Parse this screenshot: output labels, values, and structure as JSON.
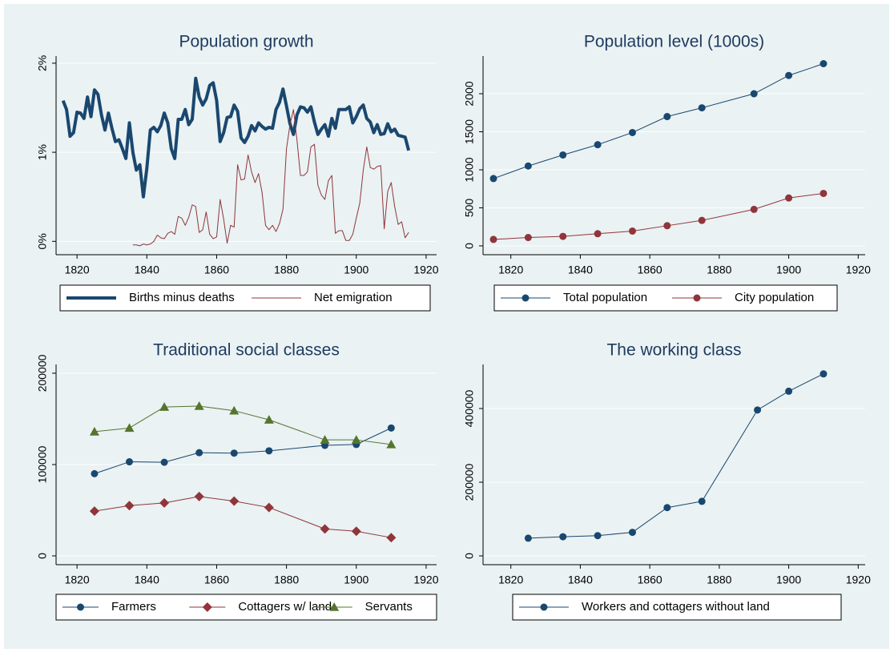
{
  "chart_data": [
    {
      "type": "line",
      "title": "Population growth",
      "x": [
        1816,
        1817,
        1818,
        1819,
        1820,
        1821,
        1822,
        1823,
        1824,
        1825,
        1826,
        1827,
        1828,
        1829,
        1830,
        1831,
        1832,
        1833,
        1834,
        1835,
        1836,
        1837,
        1838,
        1839,
        1840,
        1841,
        1842,
        1843,
        1844,
        1845,
        1846,
        1847,
        1848,
        1849,
        1850,
        1851,
        1852,
        1853,
        1854,
        1855,
        1856,
        1857,
        1858,
        1859,
        1860,
        1861,
        1862,
        1863,
        1864,
        1865,
        1866,
        1867,
        1868,
        1869,
        1870,
        1871,
        1872,
        1873,
        1874,
        1875,
        1876,
        1877,
        1878,
        1879,
        1880,
        1881,
        1882,
        1883,
        1884,
        1885,
        1886,
        1887,
        1888,
        1889,
        1890,
        1891,
        1892,
        1893,
        1894,
        1895,
        1896,
        1897,
        1898,
        1899,
        1900,
        1901,
        1902,
        1903,
        1904,
        1905,
        1906,
        1907,
        1908,
        1909,
        1910,
        1911,
        1912,
        1913,
        1914,
        1915
      ],
      "series": [
        {
          "name": "Births minus deaths",
          "color": "#1a476f",
          "line_width": 4,
          "values": [
            1.58,
            1.48,
            1.18,
            1.22,
            1.45,
            1.44,
            1.38,
            1.62,
            1.4,
            1.7,
            1.65,
            1.42,
            1.25,
            1.44,
            1.27,
            1.12,
            1.14,
            1.04,
            0.93,
            1.33,
            1.0,
            0.8,
            0.86,
            0.5,
            0.82,
            1.25,
            1.28,
            1.23,
            1.3,
            1.44,
            1.33,
            1.04,
            0.93,
            1.37,
            1.37,
            1.48,
            1.31,
            1.37,
            1.83,
            1.62,
            1.53,
            1.6,
            1.75,
            1.78,
            1.58,
            1.12,
            1.22,
            1.39,
            1.4,
            1.53,
            1.46,
            1.16,
            1.11,
            1.18,
            1.3,
            1.24,
            1.33,
            1.29,
            1.26,
            1.28,
            1.27,
            1.48,
            1.56,
            1.71,
            1.52,
            1.32,
            1.2,
            1.42,
            1.51,
            1.5,
            1.45,
            1.51,
            1.34,
            1.2,
            1.26,
            1.31,
            1.18,
            1.38,
            1.27,
            1.48,
            1.48,
            1.48,
            1.51,
            1.33,
            1.4,
            1.49,
            1.53,
            1.38,
            1.34,
            1.22,
            1.31,
            1.2,
            1.21,
            1.32,
            1.23,
            1.26,
            1.19,
            1.18,
            1.17,
            1.02
          ]
        },
        {
          "name": "Net emigration",
          "color": "#90353b",
          "line_width": 1,
          "values": [
            null,
            null,
            null,
            null,
            null,
            null,
            null,
            null,
            null,
            null,
            null,
            null,
            null,
            null,
            null,
            null,
            null,
            null,
            null,
            null,
            -0.04,
            -0.04,
            -0.05,
            -0.03,
            -0.04,
            -0.03,
            0.0,
            0.07,
            0.04,
            0.03,
            0.09,
            0.11,
            0.08,
            0.28,
            0.26,
            0.18,
            0.27,
            0.41,
            0.39,
            0.1,
            0.13,
            0.33,
            0.08,
            0.03,
            0.05,
            0.47,
            0.25,
            -0.02,
            0.18,
            0.16,
            0.86,
            0.69,
            0.7,
            0.97,
            0.78,
            0.66,
            0.76,
            0.55,
            0.18,
            0.13,
            0.18,
            0.11,
            0.2,
            0.36,
            1.04,
            1.31,
            1.48,
            1.14,
            0.74,
            0.74,
            0.78,
            1.06,
            1.09,
            0.63,
            0.52,
            0.47,
            0.68,
            0.74,
            0.09,
            0.12,
            0.12,
            0.01,
            0.01,
            0.08,
            0.26,
            0.43,
            0.8,
            1.06,
            0.83,
            0.81,
            0.84,
            0.85,
            0.14,
            0.56,
            0.66,
            0.39,
            0.19,
            0.22,
            0.04,
            0.1
          ]
        }
      ],
      "xlim": [
        1814,
        1923
      ],
      "xticks": [
        1820,
        1840,
        1860,
        1880,
        1900,
        1920
      ],
      "ylim": [
        -0.15,
        2.08
      ],
      "yticks": [
        {
          "value": 0,
          "label": "0%"
        },
        {
          "value": 1,
          "label": "1%"
        },
        {
          "value": 2,
          "label": "2%"
        }
      ],
      "grid": true,
      "legend": "bottom"
    },
    {
      "type": "line",
      "title": "Population level (1000s)",
      "x": [
        1815,
        1825,
        1835,
        1845,
        1855,
        1865,
        1875,
        1890,
        1900,
        1910
      ],
      "series": [
        {
          "name": "Total population",
          "color": "#1a476f",
          "line_width": 1,
          "marker": "circle",
          "values": [
            885,
            1050,
            1195,
            1330,
            1490,
            1700,
            1815,
            2000,
            2240,
            2395
          ]
        },
        {
          "name": "City population",
          "color": "#90353b",
          "line_width": 1,
          "marker": "circle",
          "values": [
            85,
            110,
            125,
            160,
            195,
            265,
            335,
            480,
            630,
            690
          ]
        }
      ],
      "xlim": [
        1812,
        1922
      ],
      "xticks": [
        1820,
        1840,
        1860,
        1880,
        1900,
        1920
      ],
      "ylim": [
        -116,
        2495
      ],
      "yticks": [
        0,
        500,
        1000,
        1500,
        2000
      ],
      "grid": true,
      "legend": "bottom"
    },
    {
      "type": "line",
      "title": "Traditional social classes",
      "x": [
        1825,
        1835,
        1845,
        1855,
        1865,
        1875,
        1891,
        1900,
        1910
      ],
      "series": [
        {
          "name": "Farmers",
          "color": "#1a476f",
          "line_width": 1,
          "marker": "circle",
          "values": [
            90000,
            103000,
            102500,
            113000,
            112500,
            115000,
            121000,
            122000,
            140000
          ]
        },
        {
          "name": "Cottagers w/ land",
          "color": "#90353b",
          "line_width": 1,
          "marker": "diamond",
          "values": [
            49000,
            55000,
            58000,
            65000,
            60000,
            53000,
            29500,
            27000,
            20000
          ]
        },
        {
          "name": "Servants",
          "color": "#55752f",
          "line_width": 1,
          "marker": "triangle",
          "values": [
            136000,
            140000,
            163000,
            164000,
            159000,
            149000,
            127000,
            127000,
            122000
          ]
        }
      ],
      "xlim": [
        1814,
        1923
      ],
      "xticks": [
        1820,
        1840,
        1860,
        1880,
        1900,
        1920
      ],
      "ylim": [
        -9650,
        209600
      ],
      "yticks": [
        0,
        100000,
        200000
      ],
      "grid": true,
      "legend": "bottom"
    },
    {
      "type": "line",
      "title": "The working class",
      "x": [
        1825,
        1835,
        1845,
        1855,
        1865,
        1875,
        1891,
        1900,
        1910
      ],
      "series": [
        {
          "name": "Workers and cottagers without land",
          "color": "#1a476f",
          "line_width": 1,
          "marker": "circle",
          "values": [
            48000,
            52000,
            55000,
            64000,
            131000,
            148000,
            396000,
            447000,
            494000
          ]
        }
      ],
      "xlim": [
        1812,
        1922
      ],
      "xticks": [
        1820,
        1840,
        1860,
        1880,
        1900,
        1920
      ],
      "ylim": [
        -23900,
        519600
      ],
      "yticks": [
        0,
        200000,
        400000
      ],
      "grid": true,
      "legend": "bottom"
    }
  ]
}
